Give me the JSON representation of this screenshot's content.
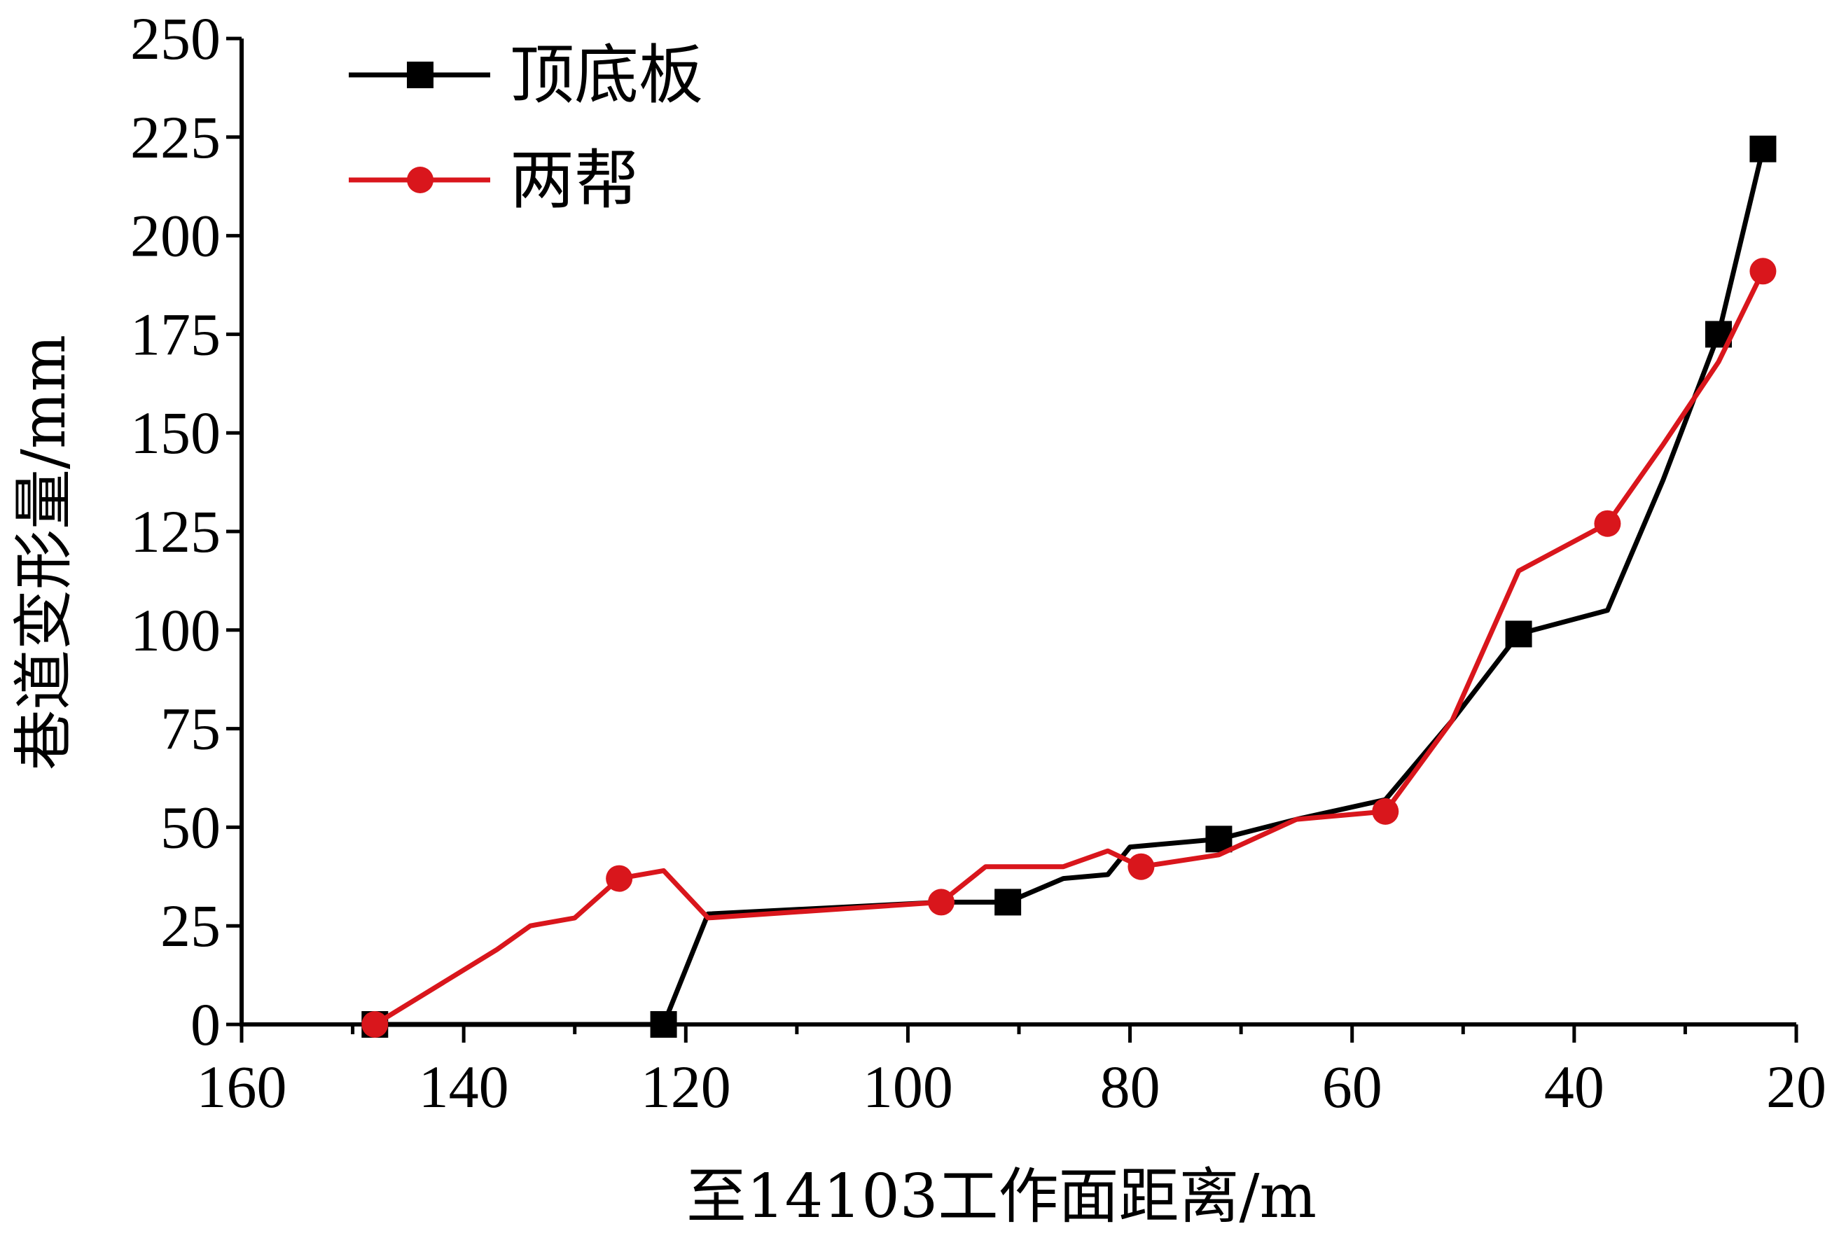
{
  "chart_data": {
    "type": "line",
    "title": "",
    "xlabel": "至14103工作面距离/m",
    "ylabel": "巷道变形量/mm",
    "xlim": [
      160,
      20
    ],
    "ylim": [
      0,
      250
    ],
    "x_ticks": [
      160,
      140,
      120,
      100,
      80,
      60,
      40,
      20
    ],
    "x_tick_labels": [
      "160",
      "140",
      "120",
      "100",
      "80",
      "60",
      "40",
      "20"
    ],
    "x_minor_ticks": [
      150,
      130,
      110,
      90,
      70,
      50,
      30
    ],
    "y_ticks": [
      0,
      25,
      50,
      75,
      100,
      125,
      150,
      175,
      200,
      225,
      250
    ],
    "y_tick_labels": [
      "0",
      "25",
      "50",
      "75",
      "100",
      "125",
      "150",
      "175",
      "200",
      "225",
      "250"
    ],
    "grid": false,
    "legend_position": "top-left",
    "series": [
      {
        "name": "顶底板",
        "color": "#000000",
        "marker": "square",
        "x": [
          148,
          122,
          118,
          97,
          91,
          86,
          82,
          80,
          72,
          65,
          57,
          51,
          45,
          37,
          32,
          27,
          23
        ],
        "y": [
          0,
          0,
          28,
          31,
          31,
          37,
          38,
          45,
          47,
          52,
          57,
          77,
          99,
          105,
          138,
          175,
          222
        ],
        "marker_x": [
          148,
          122,
          91,
          72,
          45,
          27,
          23
        ],
        "marker_y": [
          0,
          0,
          31,
          47,
          99,
          175,
          222
        ]
      },
      {
        "name": "两帮",
        "color": "#d9161c",
        "marker": "circle",
        "x": [
          148,
          137,
          134,
          130,
          126,
          122,
          118,
          97,
          93,
          86,
          82,
          79,
          72,
          65,
          57,
          51,
          45,
          37,
          32,
          27,
          23
        ],
        "y": [
          0,
          19,
          25,
          27,
          37,
          39,
          27,
          31,
          40,
          40,
          44,
          40,
          43,
          52,
          54,
          77,
          115,
          127,
          147,
          168,
          191
        ],
        "marker_x": [
          148,
          126,
          97,
          79,
          57,
          37,
          23
        ],
        "marker_y": [
          0,
          37,
          31,
          40,
          54,
          127,
          191
        ]
      }
    ]
  }
}
